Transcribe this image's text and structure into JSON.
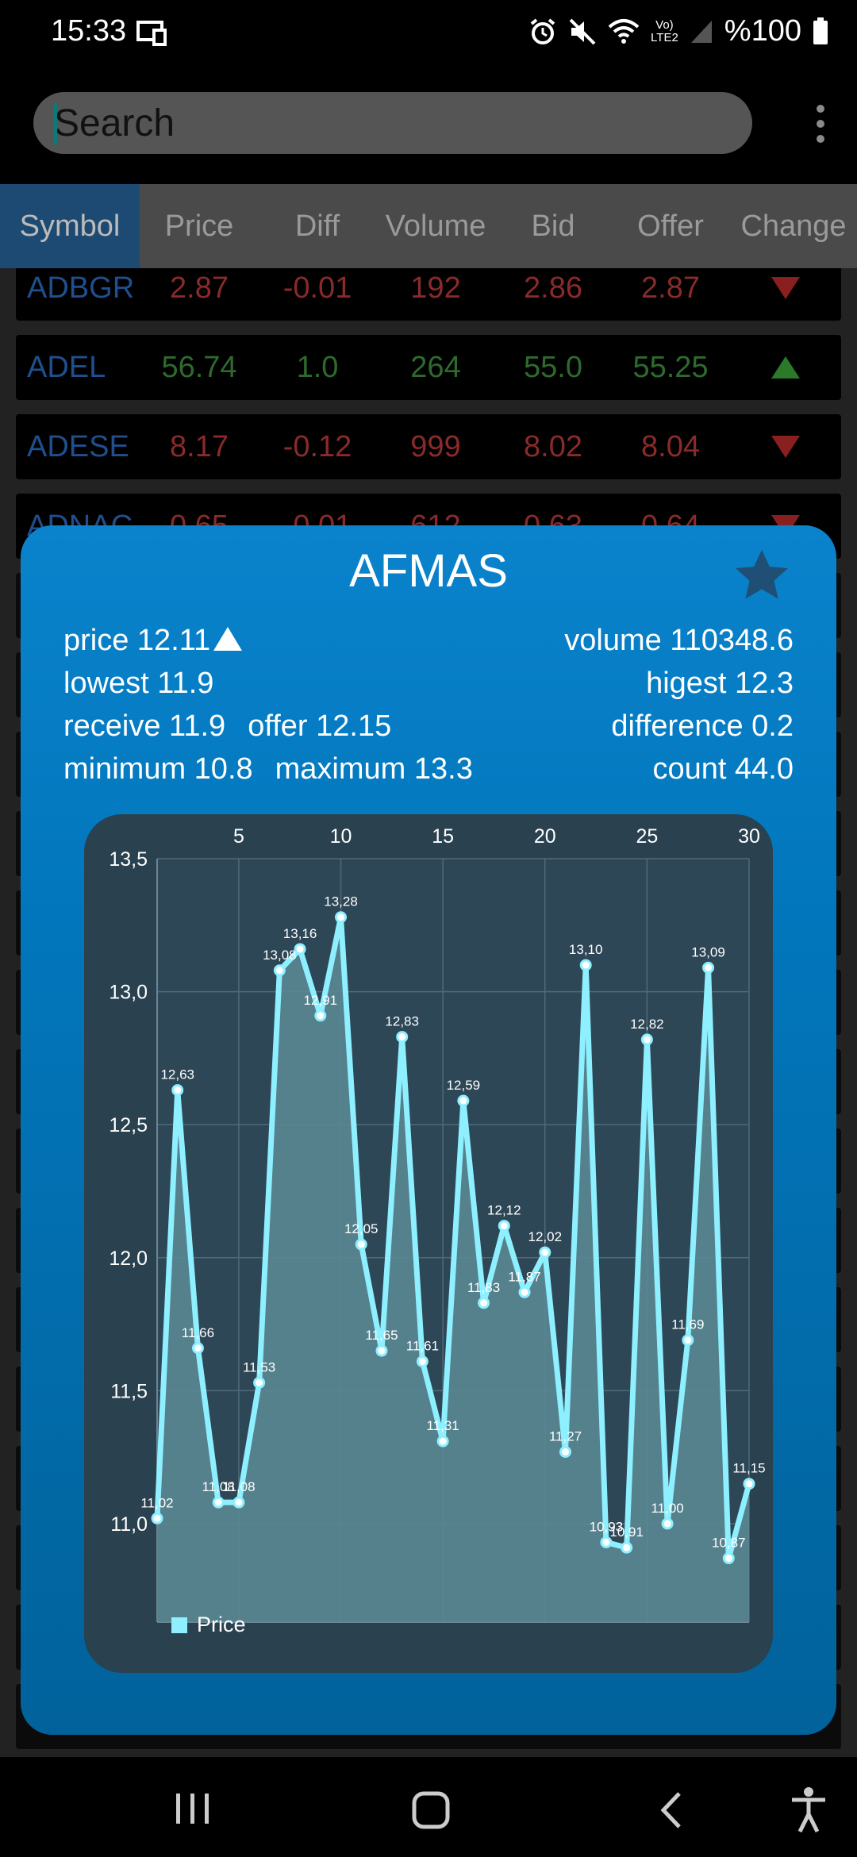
{
  "status": {
    "time": "15:33",
    "battery": "%100",
    "icons": [
      "screen-mirror-icon",
      "alarm-icon",
      "mute-icon",
      "wifi-icon",
      "volte-icon",
      "signal-icon",
      "battery-icon"
    ],
    "volte_label": "Vo)\nLTE2"
  },
  "search": {
    "placeholder": "Search"
  },
  "table": {
    "headers": [
      "Symbol",
      "Price",
      "Diff",
      "Volume",
      "Bid",
      "Offer",
      "Change"
    ],
    "rows": [
      {
        "symbol": "ADBGR",
        "price": "2.87",
        "diff": "-0.01",
        "volume": "192",
        "bid": "2.86",
        "offer": "2.87",
        "trend": "down"
      },
      {
        "symbol": "ADEL",
        "price": "56.74",
        "diff": "1.0",
        "volume": "264",
        "bid": "55.0",
        "offer": "55.25",
        "trend": "up"
      },
      {
        "symbol": "ADESE",
        "price": "8.17",
        "diff": "-0.12",
        "volume": "999",
        "bid": "8.02",
        "offer": "8.04",
        "trend": "down"
      },
      {
        "symbol": "ADNAC",
        "price": "0.65",
        "diff": "-0.01",
        "volume": "612",
        "bid": "0.63",
        "offer": "0.64",
        "trend": "down"
      }
    ]
  },
  "detail": {
    "title": "AFMAS",
    "price_line": "price 12.11",
    "lowest_line": "lowest 11.9",
    "receive_line": "receive 11.9",
    "offer_line": "offer 12.15",
    "minimum_line": "minimum 10.8",
    "maximum_line": "maximum 13.3",
    "volume_line": "volume 110348.6",
    "highest_line": "higest 12.3",
    "difference_line": "difference 0.2",
    "count_line": "count 44.0"
  },
  "chart_data": {
    "type": "area",
    "x": [
      1,
      2,
      3,
      4,
      5,
      6,
      7,
      8,
      9,
      10,
      11,
      12,
      13,
      14,
      15,
      16,
      17,
      18,
      19,
      20,
      21,
      22,
      23,
      24,
      25,
      26,
      27,
      28,
      29,
      30
    ],
    "x_ticks": [
      "5",
      "10",
      "15",
      "20",
      "25",
      "30"
    ],
    "x_tick_values": [
      5,
      10,
      15,
      20,
      25,
      30
    ],
    "y_ticks": [
      "11,0",
      "11,5",
      "12,0",
      "12,5",
      "13,0",
      "13,5"
    ],
    "y_tick_values": [
      11.0,
      11.5,
      12.0,
      12.5,
      13.0,
      13.5
    ],
    "ylim": [
      10.63,
      13.5
    ],
    "xlim": [
      1,
      30
    ],
    "series": [
      {
        "name": "Price",
        "values": [
          11.02,
          12.63,
          11.66,
          11.08,
          11.08,
          11.53,
          13.08,
          13.16,
          12.91,
          13.28,
          12.05,
          11.65,
          12.83,
          11.61,
          11.31,
          12.59,
          11.83,
          12.12,
          11.87,
          12.02,
          11.27,
          13.1,
          10.93,
          10.91,
          12.82,
          11.0,
          11.69,
          13.09,
          10.87,
          11.15
        ],
        "labels": [
          "11,02",
          "12,63",
          "11,66",
          "11,08",
          "11,08",
          "11,53",
          "13,08",
          "13,16",
          "12,91",
          "13,28",
          "12,05",
          "11,65",
          "12,83",
          "11,61",
          "11,31",
          "12,59",
          "11,83",
          "12,12",
          "11,87",
          "12,02",
          "11,27",
          "13,10",
          "10,93",
          "10,91",
          "12,82",
          "11,00",
          "11,69",
          "13,09",
          "10,87",
          "11,15"
        ]
      }
    ],
    "legend": "bottom-left",
    "grid": true,
    "colors": {
      "line": "#8ef0ff",
      "fill": "#5a8794",
      "plot_bg": "#2e4756"
    }
  },
  "nav": {
    "icons": [
      "recent-apps-icon",
      "home-icon",
      "back-icon",
      "accessibility-icon"
    ]
  },
  "colors": {
    "up": "#2a7a2a",
    "down": "#8a1f1f",
    "modal_top": "#0a83cc",
    "modal_bottom": "#01629b"
  }
}
